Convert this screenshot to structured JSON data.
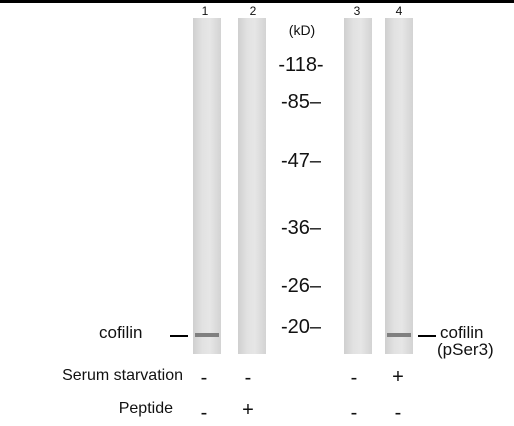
{
  "lanes": [
    {
      "number": "1"
    },
    {
      "number": "2"
    },
    {
      "number": "3"
    },
    {
      "number": "4"
    }
  ],
  "unit_label": "(kD)",
  "markers": [
    "-118-",
    "-85–",
    "-47–",
    "-36–",
    "-26–",
    "-20–"
  ],
  "left_label": "cofilin",
  "right_label": {
    "line1": "cofilin",
    "line2": "(pSer3)"
  },
  "conditions": [
    {
      "label": "Serum starvation",
      "values": [
        "-",
        "-",
        "-",
        "+"
      ]
    },
    {
      "label": "Peptide",
      "values": [
        "-",
        "+",
        "-",
        "-"
      ]
    }
  ]
}
